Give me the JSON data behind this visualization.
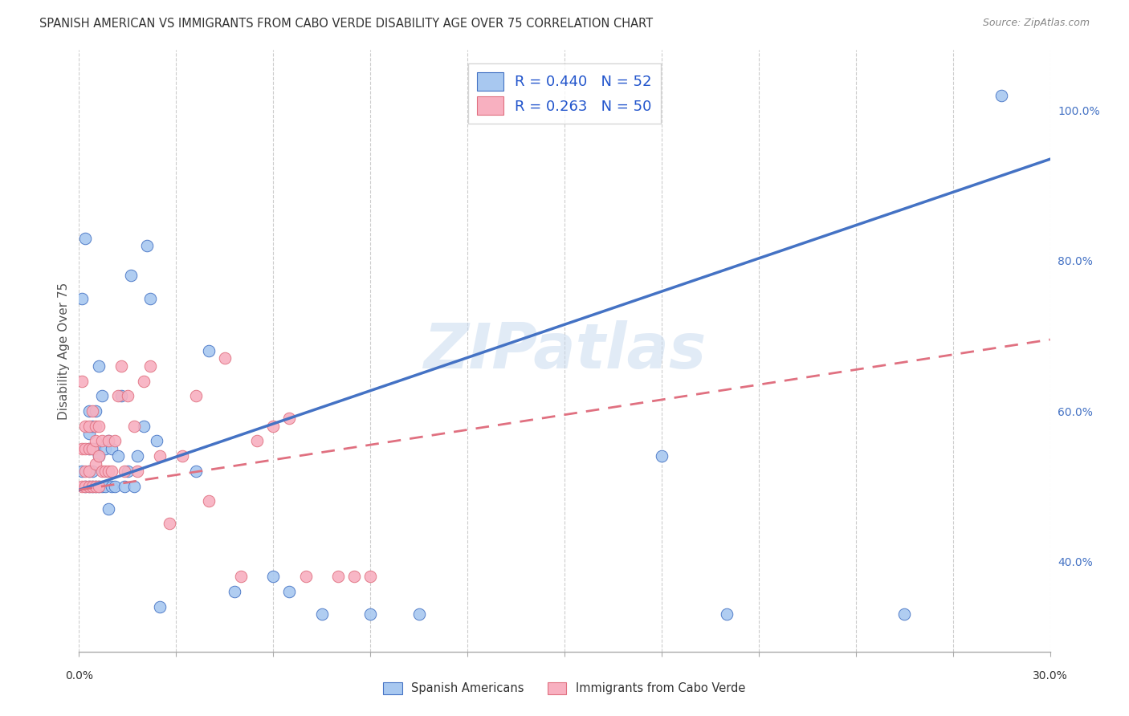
{
  "title": "SPANISH AMERICAN VS IMMIGRANTS FROM CABO VERDE DISABILITY AGE OVER 75 CORRELATION CHART",
  "source": "Source: ZipAtlas.com",
  "ylabel": "Disability Age Over 75",
  "right_yticks": [
    40.0,
    60.0,
    80.0,
    100.0
  ],
  "watermark": "ZIPatlas",
  "series1_color": "#A8C8F0",
  "series2_color": "#F8B0C0",
  "line1_color": "#4472C4",
  "line2_color": "#E07080",
  "series1_name": "Spanish Americans",
  "series2_name": "Immigrants from Cabo Verde",
  "xlim": [
    0.0,
    0.3
  ],
  "ylim": [
    0.28,
    1.08
  ],
  "R1": 0.44,
  "N1": 52,
  "R2": 0.263,
  "N2": 50,
  "blue_line_x0": 0.0,
  "blue_line_y0": 0.495,
  "blue_line_x1": 0.3,
  "blue_line_y1": 0.935,
  "pink_line_x0": 0.0,
  "pink_line_y0": 0.495,
  "pink_line_x1": 0.3,
  "pink_line_y1": 0.695,
  "blue_scatter_x": [
    0.001,
    0.001,
    0.002,
    0.002,
    0.003,
    0.003,
    0.003,
    0.003,
    0.003,
    0.004,
    0.004,
    0.004,
    0.004,
    0.005,
    0.005,
    0.005,
    0.006,
    0.006,
    0.006,
    0.007,
    0.007,
    0.008,
    0.008,
    0.009,
    0.009,
    0.01,
    0.01,
    0.011,
    0.012,
    0.013,
    0.014,
    0.015,
    0.016,
    0.017,
    0.018,
    0.02,
    0.021,
    0.022,
    0.024,
    0.025,
    0.036,
    0.04,
    0.048,
    0.06,
    0.065,
    0.075,
    0.09,
    0.105,
    0.18,
    0.2,
    0.255,
    0.285
  ],
  "blue_scatter_y": [
    0.52,
    0.75,
    0.5,
    0.83,
    0.5,
    0.52,
    0.55,
    0.57,
    0.6,
    0.5,
    0.52,
    0.55,
    0.58,
    0.5,
    0.55,
    0.6,
    0.5,
    0.54,
    0.66,
    0.5,
    0.62,
    0.5,
    0.55,
    0.47,
    0.56,
    0.5,
    0.55,
    0.5,
    0.54,
    0.62,
    0.5,
    0.52,
    0.78,
    0.5,
    0.54,
    0.58,
    0.82,
    0.75,
    0.56,
    0.34,
    0.52,
    0.68,
    0.36,
    0.38,
    0.36,
    0.33,
    0.33,
    0.33,
    0.54,
    0.33,
    0.33,
    1.02
  ],
  "pink_scatter_x": [
    0.001,
    0.001,
    0.001,
    0.002,
    0.002,
    0.002,
    0.002,
    0.003,
    0.003,
    0.003,
    0.003,
    0.004,
    0.004,
    0.004,
    0.005,
    0.005,
    0.005,
    0.005,
    0.006,
    0.006,
    0.006,
    0.007,
    0.007,
    0.008,
    0.009,
    0.009,
    0.01,
    0.011,
    0.012,
    0.013,
    0.014,
    0.015,
    0.017,
    0.018,
    0.02,
    0.022,
    0.025,
    0.028,
    0.032,
    0.036,
    0.04,
    0.045,
    0.05,
    0.055,
    0.06,
    0.065,
    0.07,
    0.08,
    0.085,
    0.09
  ],
  "pink_scatter_y": [
    0.5,
    0.55,
    0.64,
    0.5,
    0.52,
    0.55,
    0.58,
    0.5,
    0.52,
    0.55,
    0.58,
    0.5,
    0.55,
    0.6,
    0.5,
    0.53,
    0.56,
    0.58,
    0.5,
    0.54,
    0.58,
    0.52,
    0.56,
    0.52,
    0.52,
    0.56,
    0.52,
    0.56,
    0.62,
    0.66,
    0.52,
    0.62,
    0.58,
    0.52,
    0.64,
    0.66,
    0.54,
    0.45,
    0.54,
    0.62,
    0.48,
    0.67,
    0.38,
    0.56,
    0.58,
    0.59,
    0.38,
    0.38,
    0.38,
    0.38
  ]
}
